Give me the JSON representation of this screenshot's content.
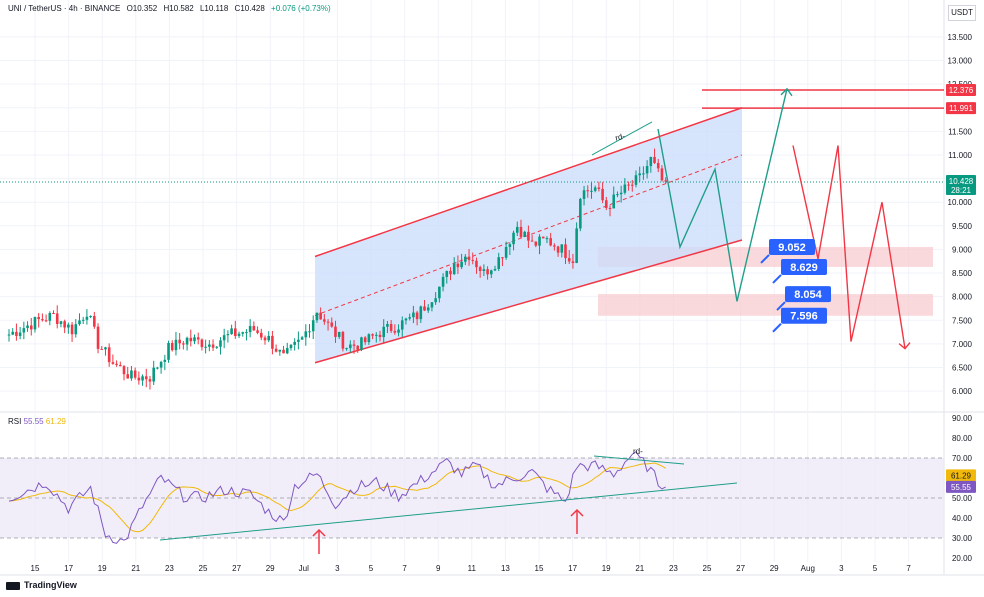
{
  "header": {
    "symbol": "UNI / TetherUS · 4h · BINANCE",
    "open": "O10.352",
    "high": "H10.582",
    "low": "L10.118",
    "close": "C10.428",
    "change": "+0.076 (+0.73%)"
  },
  "currency": "USDT",
  "price_tags": {
    "resistance_top": "12.376",
    "resistance_2": "11.991",
    "last_price": "10.428",
    "countdown": "28:21"
  },
  "rsi": {
    "label": "RSI",
    "value": "55.55",
    "ma": "61.29",
    "value_color": "#7e57c2",
    "ma_color": "#f0b90b"
  },
  "annotations": {
    "rd_label": "rd-",
    "rd_label_rsi": "rd-",
    "targets": [
      "9.052",
      "8.629",
      "8.054",
      "7.596"
    ]
  },
  "brand": "TradingView",
  "colors": {
    "up": "#089981",
    "down": "#f23645",
    "channel": "#f23645",
    "channel_fill": "#c9dcfb",
    "teal_path": "#1f9e89",
    "red_path": "#f23645",
    "zone_fill": "#f8c9cd",
    "target_box": "#2962ff",
    "rsi_line": "#7e57c2",
    "rsi_ma": "#f0b90b",
    "rsi_band": "#ede7f6"
  },
  "chart_data": {
    "type": "candlestick",
    "price_axis": {
      "ylim": [
        5.6,
        13.9
      ],
      "ticks": [
        "13.500",
        "13.000",
        "12.500",
        "12.000",
        "11.500",
        "11.000",
        "10.500",
        "10.000",
        "9.500",
        "9.000",
        "8.500",
        "8.000",
        "7.500",
        "7.000",
        "6.500",
        "6.000"
      ]
    },
    "x_ticks": [
      "15",
      "17",
      "19",
      "21",
      "23",
      "25",
      "27",
      "29",
      "Jul",
      "3",
      "5",
      "7",
      "9",
      "11",
      "13",
      "15",
      "17",
      "19",
      "21",
      "23",
      "25",
      "27",
      "29",
      "Aug",
      "3",
      "5",
      "7"
    ],
    "price_waypoints": [
      [
        0,
        7.2
      ],
      [
        8,
        7.5
      ],
      [
        12,
        7.6
      ],
      [
        17,
        7.3
      ],
      [
        21,
        7.7
      ],
      [
        24,
        7.0
      ],
      [
        28,
        6.6
      ],
      [
        33,
        6.3
      ],
      [
        38,
        6.3
      ],
      [
        43,
        6.9
      ],
      [
        48,
        7.1
      ],
      [
        54,
        7.0
      ],
      [
        60,
        7.2
      ],
      [
        66,
        7.3
      ],
      [
        70,
        7.1
      ],
      [
        74,
        6.7
      ],
      [
        79,
        7.1
      ],
      [
        83,
        7.7
      ],
      [
        87,
        7.3
      ],
      [
        91,
        6.95
      ],
      [
        95,
        7.0
      ],
      [
        100,
        7.25
      ],
      [
        105,
        7.4
      ],
      [
        110,
        7.6
      ],
      [
        116,
        8.2
      ],
      [
        120,
        8.7
      ],
      [
        124,
        8.9
      ],
      [
        128,
        8.5
      ],
      [
        132,
        8.8
      ],
      [
        137,
        9.5
      ],
      [
        141,
        9.1
      ],
      [
        145,
        9.2
      ],
      [
        149,
        9.0
      ],
      [
        152,
        8.8
      ],
      [
        154,
        10.2
      ],
      [
        158,
        10.3
      ],
      [
        161,
        9.9
      ],
      [
        165,
        10.2
      ],
      [
        170,
        10.5
      ],
      [
        173,
        10.9
      ],
      [
        175,
        10.6
      ],
      [
        177,
        10.3
      ]
    ],
    "channel": {
      "upper": [
        [
          315,
          7.0
        ],
        [
          742,
          9.2
        ]
      ],
      "lower": [
        [
          315,
          6.6
        ],
        [
          742,
          9.75
        ]
      ],
      "top_from": [
        315,
        8.85
      ],
      "mid_from": [
        315,
        7.6
      ],
      "mid_to": [
        742,
        11.0
      ]
    },
    "horizontal_levels": [
      12.376,
      11.991
    ],
    "zones": [
      [
        8.629,
        9.052
      ],
      [
        7.596,
        8.054
      ]
    ],
    "projection_teal": [
      [
        658,
        11.55
      ],
      [
        680,
        9.05
      ],
      [
        715,
        10.7
      ],
      [
        737,
        7.9
      ],
      [
        787,
        12.4
      ]
    ],
    "projection_red": [
      [
        793,
        11.2
      ],
      [
        818,
        8.8
      ],
      [
        838,
        11.2
      ],
      [
        851,
        7.05
      ],
      [
        882,
        10.0
      ],
      [
        905,
        6.9
      ]
    ],
    "rsi_axis": {
      "ylim": [
        18,
        92
      ],
      "ticks": [
        "90.00",
        "80.00",
        "70.00",
        "60.00",
        "50.00",
        "40.00",
        "30.00",
        "20.00"
      ],
      "band": [
        30,
        70
      ]
    },
    "rsi_waypoints": [
      [
        0,
        50
      ],
      [
        10,
        58
      ],
      [
        16,
        45
      ],
      [
        22,
        55
      ],
      [
        26,
        32
      ],
      [
        31,
        28
      ],
      [
        36,
        46
      ],
      [
        41,
        60
      ],
      [
        47,
        51
      ],
      [
        52,
        50
      ],
      [
        58,
        54
      ],
      [
        65,
        52
      ],
      [
        70,
        43
      ],
      [
        74,
        38
      ],
      [
        77,
        56
      ],
      [
        83,
        62
      ],
      [
        88,
        47
      ],
      [
        93,
        55
      ],
      [
        99,
        58
      ],
      [
        105,
        51
      ],
      [
        112,
        60
      ],
      [
        118,
        68
      ],
      [
        122,
        62
      ],
      [
        126,
        66
      ],
      [
        131,
        56
      ],
      [
        136,
        60
      ],
      [
        141,
        63
      ],
      [
        145,
        55
      ],
      [
        150,
        48
      ],
      [
        153,
        66
      ],
      [
        158,
        66
      ],
      [
        163,
        62
      ],
      [
        168,
        72
      ],
      [
        172,
        66
      ],
      [
        175,
        58
      ],
      [
        177,
        55.55
      ]
    ]
  }
}
